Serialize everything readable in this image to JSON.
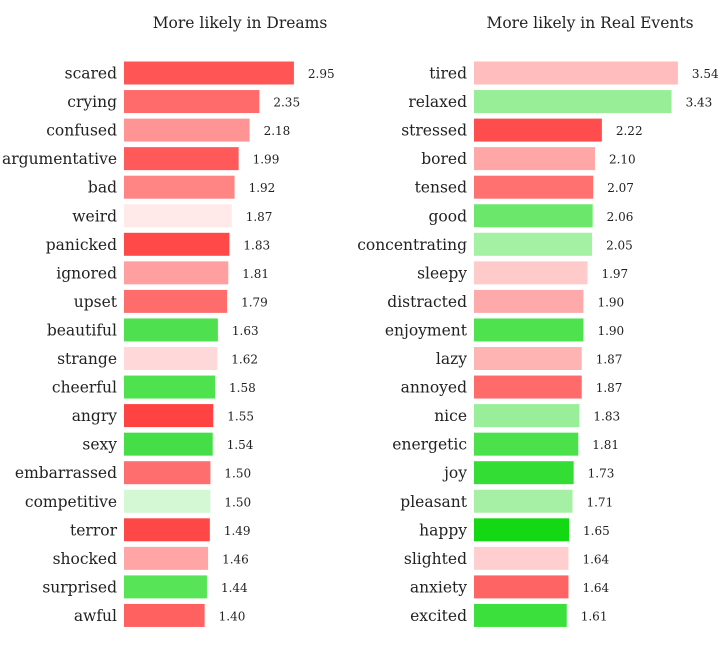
{
  "chart_data": [
    {
      "type": "bar",
      "orientation": "horizontal",
      "title": "More likely in Dreams",
      "xlim": [
        0,
        3.0
      ],
      "grid": false,
      "categories": [
        "scared",
        "crying",
        "confused",
        "argumentative",
        "bad",
        "weird",
        "panicked",
        "ignored",
        "upset",
        "beautiful",
        "strange",
        "cheerful",
        "angry",
        "sexy",
        "embarrassed",
        "competitive",
        "terror",
        "shocked",
        "surprised",
        "awful"
      ],
      "values": [
        2.95,
        2.35,
        2.18,
        1.99,
        1.92,
        1.87,
        1.83,
        1.81,
        1.79,
        1.63,
        1.62,
        1.58,
        1.55,
        1.54,
        1.5,
        1.5,
        1.49,
        1.46,
        1.44,
        1.4
      ],
      "value_labels": [
        "2.95",
        "2.35",
        "2.18",
        "1.99",
        "1.92",
        "1.87",
        "1.83",
        "1.81",
        "1.79",
        "1.63",
        "1.62",
        "1.58",
        "1.55",
        "1.54",
        "1.50",
        "1.50",
        "1.49",
        "1.46",
        "1.44",
        "1.40"
      ],
      "colors": [
        "#ff5555",
        "#ff6b6b",
        "#ff9494",
        "#ff5959",
        "#ff8585",
        "#ffe9e9",
        "#ff4949",
        "#ff9f9f",
        "#ff6c6c",
        "#4ee04e",
        "#ffd9d9",
        "#4fe24f",
        "#ff4242",
        "#46de46",
        "#ff6e6e",
        "#d4f8d4",
        "#ff4747",
        "#ffa5a5",
        "#57e457",
        "#ff6161"
      ]
    },
    {
      "type": "bar",
      "orientation": "horizontal",
      "title": "More likely in Real Events",
      "xlim": [
        0,
        3.6
      ],
      "grid": false,
      "categories": [
        "tired",
        "relaxed",
        "stressed",
        "bored",
        "tensed",
        "good",
        "concentrating",
        "sleepy",
        "distracted",
        "enjoyment",
        "lazy",
        "annoyed",
        "nice",
        "energetic",
        "joy",
        "pleasant",
        "happy",
        "slighted",
        "anxiety",
        "excited"
      ],
      "values": [
        3.54,
        3.43,
        2.22,
        2.1,
        2.07,
        2.06,
        2.05,
        1.97,
        1.9,
        1.9,
        1.87,
        1.87,
        1.83,
        1.81,
        1.73,
        1.71,
        1.65,
        1.64,
        1.64,
        1.61
      ],
      "value_labels": [
        "3.54",
        "3.43",
        "2.22",
        "2.10",
        "2.07",
        "2.06",
        "2.05",
        "1.97",
        "1.90",
        "1.90",
        "1.87",
        "1.87",
        "1.83",
        "1.81",
        "1.73",
        "1.71",
        "1.65",
        "1.64",
        "1.64",
        "1.61"
      ],
      "colors": [
        "#ffbdbd",
        "#97ee97",
        "#ff4d4d",
        "#ffa6a6",
        "#ff7070",
        "#6be86b",
        "#a4f1a4",
        "#ffcaca",
        "#ffaaaa",
        "#4ee24e",
        "#ffb4b4",
        "#ff6a6a",
        "#99ee99",
        "#4ae14a",
        "#33dd33",
        "#a6f0a6",
        "#14d814",
        "#ffcfcf",
        "#ff6464",
        "#3ce03c"
      ]
    }
  ]
}
